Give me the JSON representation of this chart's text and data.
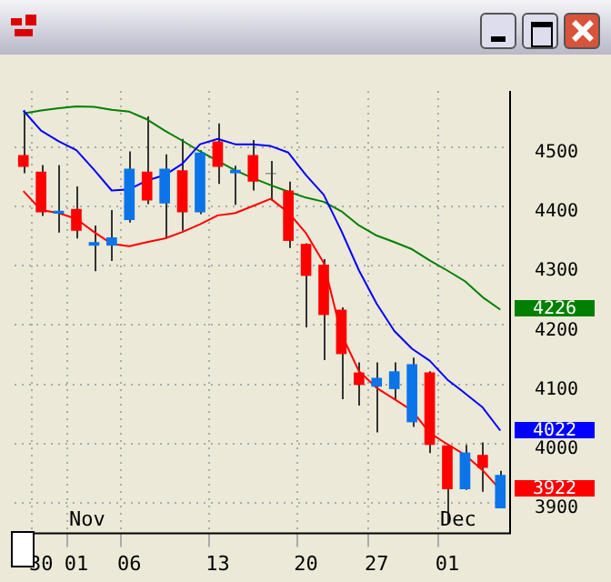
{
  "chart_data": {
    "type": "candlestick",
    "categories": [
      null,
      "30",
      null,
      "01",
      null,
      null,
      "06",
      null,
      null,
      null,
      null,
      "13",
      null,
      null,
      null,
      null,
      "20",
      null,
      null,
      null,
      "27",
      null,
      null,
      null,
      "01",
      null,
      null,
      null
    ],
    "ohlc": [
      [
        4487,
        4562,
        4456,
        4467
      ],
      [
        4459,
        4470,
        4384,
        4390
      ],
      [
        4388,
        4470,
        4356,
        4393
      ],
      [
        4396,
        4434,
        4346,
        4359
      ],
      [
        4334,
        4368,
        4291,
        4340
      ],
      [
        4334,
        4394,
        4308,
        4348
      ],
      [
        4377,
        4493,
        4373,
        4464
      ],
      [
        4459,
        4552,
        4404,
        4410
      ],
      [
        4405,
        4488,
        4346,
        4464
      ],
      [
        4461,
        4514,
        4359,
        4390
      ],
      [
        4390,
        4495,
        4387,
        4491
      ],
      [
        4510,
        4540,
        4438,
        4467
      ],
      [
        4456,
        4469,
        4403,
        4462
      ],
      [
        4487,
        4512,
        4427,
        4442
      ],
      [
        4456,
        4477,
        4410,
        4455
      ],
      [
        4427,
        4442,
        4330,
        4342
      ],
      [
        4337,
        4338,
        4196,
        4283
      ],
      [
        4302,
        4311,
        4141,
        4217
      ],
      [
        4226,
        4230,
        4075,
        4151
      ],
      [
        4120,
        4137,
        4064,
        4099
      ],
      [
        4096,
        4137,
        4019,
        4111
      ],
      [
        4092,
        4137,
        4075,
        4122
      ],
      [
        4036,
        4145,
        4028,
        4134
      ],
      [
        4120,
        4122,
        3984,
        3998
      ],
      [
        3997,
        3997,
        3866,
        3923
      ],
      [
        3923,
        3998,
        3922,
        3985
      ],
      [
        3981,
        4002,
        3919,
        3959
      ],
      [
        3891,
        3954,
        3891,
        3947
      ]
    ],
    "colors": [
      "#ff0000",
      "#ff0000",
      "#0a74e8",
      "#ff0000",
      "#0a74e8",
      "#0a74e8",
      "#0a74e8",
      "#ff0000",
      "#0a74e8",
      "#ff0000",
      "#0a74e8",
      "#ff0000",
      "#0a74e8",
      "#ff0000",
      "#404040",
      "#ff0000",
      "#ff0000",
      "#ff0000",
      "#ff0000",
      "#ff0000",
      "#0a74e8",
      "#0a74e8",
      "#0a74e8",
      "#ff0000",
      "#ff0000",
      "#0a74e8",
      "#ff0000",
      "#0a74e8"
    ],
    "series": [
      {
        "type": "line",
        "color": "#ff0000",
        "values": [
          4426,
          4394,
          4389,
          4379,
          4357,
          4337,
          4333,
          4340,
          4346,
          4357,
          4370,
          4385,
          4389,
          4401,
          4413,
          4390,
          4355,
          4305,
          4185,
          4122,
          4094,
          4075,
          4056,
          4018,
          3999,
          3981,
          3955,
          3922
        ]
      },
      {
        "type": "line",
        "color": "#0000ff",
        "values": [
          4562,
          4528,
          4510,
          4495,
          4462,
          4427,
          4429,
          4444,
          4453,
          4472,
          4505,
          4514,
          4505,
          4505,
          4502,
          4491,
          4453,
          4420,
          4359,
          4292,
          4236,
          4190,
          4160,
          4140,
          4108,
          4085,
          4061,
          4022
        ]
      },
      {
        "type": "line",
        "color": "#008000",
        "values": [
          4557,
          4562,
          4566,
          4569,
          4568,
          4563,
          4560,
          4547,
          4528,
          4511,
          4493,
          4477,
          4461,
          4448,
          4436,
          4425,
          4415,
          4408,
          4392,
          4368,
          4351,
          4340,
          4328,
          4309,
          4292,
          4274,
          4247,
          4226
        ]
      }
    ],
    "ylim": [
      3850,
      4595
    ],
    "yticks": [
      3900,
      4000,
      4100,
      4200,
      4300,
      4400,
      4500
    ],
    "grid": true,
    "annotations": [
      "Nov",
      "Dec",
      "3922",
      "4022",
      "4226"
    ]
  }
}
